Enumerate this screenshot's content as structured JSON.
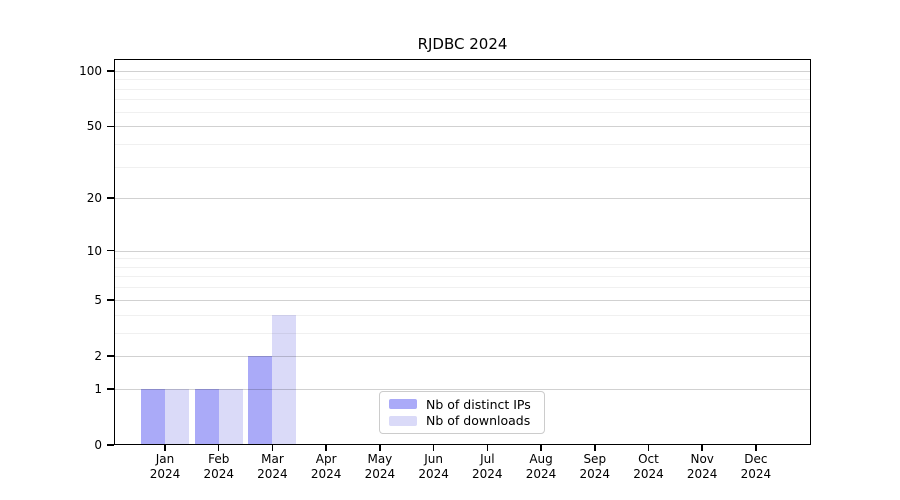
{
  "title": "RJDBC 2024",
  "chart_data": {
    "type": "bar",
    "title": "RJDBC 2024",
    "categories": [
      "Jan",
      "Feb",
      "Mar",
      "Apr",
      "May",
      "Jun",
      "Jul",
      "Aug",
      "Sep",
      "Oct",
      "Nov",
      "Dec"
    ],
    "year_label": "2024",
    "series": [
      {
        "name": "Nb of distinct IPs",
        "color": "#aaaaf8",
        "values": [
          1,
          1,
          2,
          0,
          0,
          0,
          0,
          0,
          0,
          0,
          0,
          0
        ]
      },
      {
        "name": "Nb of downloads",
        "color": "#dadaf8",
        "values": [
          1,
          1,
          4,
          0,
          0,
          0,
          0,
          0,
          0,
          0,
          0,
          0
        ]
      }
    ],
    "yscale": "log1p",
    "ylim": [
      0,
      116
    ],
    "yticks": [
      100,
      50,
      20,
      10,
      5,
      2,
      1,
      0
    ],
    "grid_major": [
      1,
      2,
      5,
      10,
      20,
      50,
      100
    ],
    "grid_minor": [
      3,
      4,
      6,
      7,
      8,
      9,
      30,
      40,
      60,
      70,
      80,
      90
    ],
    "grid": true,
    "legend_position": "bottom-center",
    "xlabel": "",
    "ylabel": ""
  },
  "colors": {
    "background": "#ffffff",
    "bar_distinct_ips": "#aaaaf8",
    "bar_downloads": "#dadaf8",
    "axis": "#000000",
    "grid_major": "rgba(0,0,0,0.18)",
    "grid_minor": "rgba(0,0,0,0.06)",
    "text": "#000000",
    "legend_border": "#cccccc"
  }
}
